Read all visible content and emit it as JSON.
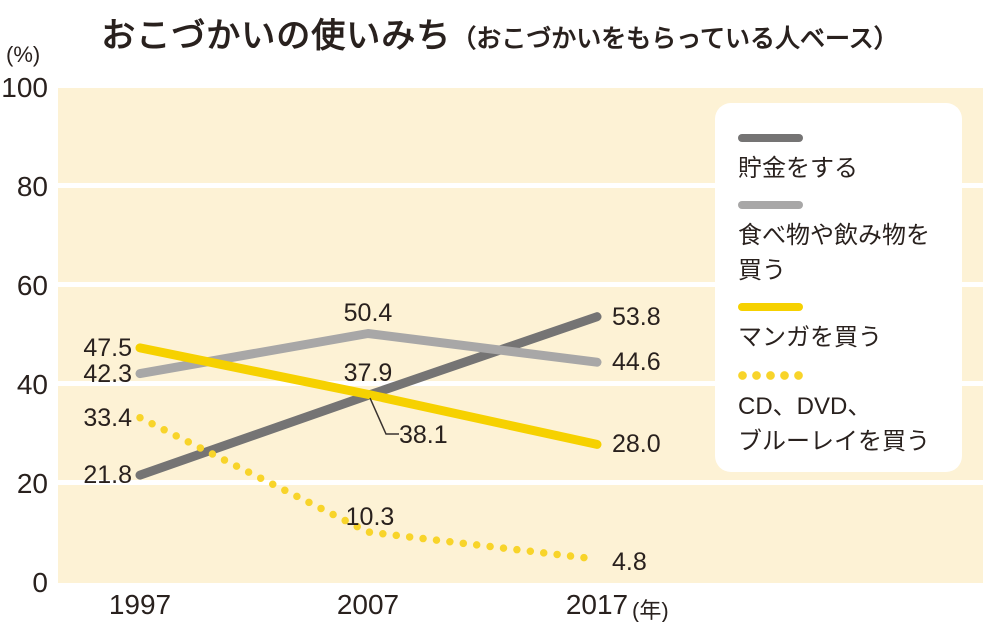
{
  "title": {
    "main": "おこづかいの使いみち",
    "sub": "（おこづかいをもらっている人ベース）"
  },
  "axes": {
    "y_unit": "(%)",
    "x_unit": "(年)",
    "y_ticks": [
      "100",
      "80",
      "60",
      "40",
      "20",
      "0"
    ],
    "x_ticks": [
      "1997",
      "2007",
      "2017"
    ]
  },
  "colors": {
    "dark_gray": "#757474",
    "light_gray": "#a8a7a7",
    "yellow": "#f6d100",
    "yellow_dots": "#f8d42a",
    "plot_bg": "#fdf2d5",
    "grid": "#ffffff",
    "text": "#29211e"
  },
  "chart_data": {
    "type": "line",
    "title": "おこづかいの使いみち（おこづかいをもらっている人ベース）",
    "x": [
      1997,
      2007,
      2017
    ],
    "xlabel": "年",
    "ylabel": "%",
    "ylim": [
      0,
      100
    ],
    "grid": "horizontal white gridlines at 20, 40, 60, 80",
    "legend_position": "right overlay box",
    "series": [
      {
        "name": "貯金をする",
        "style": "solid",
        "color": "#757474",
        "values": [
          21.8,
          37.9,
          53.8
        ],
        "labels": [
          "21.8",
          "37.9",
          "53.8"
        ]
      },
      {
        "name": "食べ物や飲み物を買う",
        "style": "solid",
        "color": "#a8a7a7",
        "values": [
          42.3,
          50.4,
          44.6
        ],
        "labels": [
          "42.3",
          "50.4",
          "44.6"
        ]
      },
      {
        "name": "マンガを買う",
        "style": "solid",
        "color": "#f6d100",
        "values": [
          47.5,
          38.1,
          28.0
        ],
        "labels": [
          "47.5",
          "38.1",
          "28.0"
        ]
      },
      {
        "name": "CD、DVD、ブルーレイを買う",
        "style": "dotted",
        "color": "#f8d42a",
        "values": [
          33.4,
          10.3,
          4.8
        ],
        "labels": [
          "33.4",
          "10.3",
          "4.8"
        ]
      }
    ]
  },
  "legend": {
    "items": [
      {
        "swatch": "solid-dark-gray",
        "lines": [
          "貯金をする"
        ]
      },
      {
        "swatch": "solid-light-gray",
        "lines": [
          "食べ物や飲み物を",
          "買う"
        ]
      },
      {
        "swatch": "solid-yellow",
        "lines": [
          "マンガを買う"
        ]
      },
      {
        "swatch": "dotted-yellow",
        "lines": [
          "CD、DVD、",
          "ブルーレイを買う"
        ]
      }
    ]
  }
}
